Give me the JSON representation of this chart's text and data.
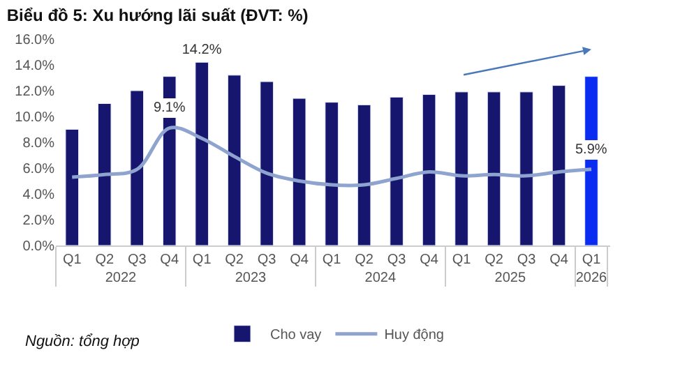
{
  "chart_data": {
    "type": "bar",
    "title": "Biểu đồ 5: Xu hướng lãi suất (ĐVT: %)",
    "categories": [
      "Q1",
      "Q2",
      "Q3",
      "Q4",
      "Q1",
      "Q2",
      "Q3",
      "Q4",
      "Q1",
      "Q2",
      "Q3",
      "Q4",
      "Q1",
      "Q2",
      "Q3",
      "Q4",
      "Q1"
    ],
    "series": [
      {
        "name": "Cho vay",
        "color": "#16166e",
        "colors": [
          "#16166e",
          "#16166e",
          "#16166e",
          "#16166e",
          "#16166e",
          "#16166e",
          "#16166e",
          "#16166e",
          "#16166e",
          "#16166e",
          "#16166e",
          "#16166e",
          "#16166e",
          "#16166e",
          "#16166e",
          "#16166e",
          "#0a2cf0"
        ],
        "values": [
          9.0,
          11.0,
          12.0,
          13.1,
          14.2,
          13.2,
          12.7,
          11.4,
          11.1,
          10.9,
          11.5,
          11.7,
          11.9,
          11.9,
          11.9,
          12.4,
          13.1
        ],
        "value_labels": [
          null,
          null,
          null,
          null,
          "14.2%",
          null,
          null,
          null,
          null,
          null,
          null,
          null,
          null,
          null,
          null,
          null,
          null
        ]
      },
      {
        "name": "Huy động",
        "type": "line",
        "color": "#8fa3cf",
        "values": [
          5.3,
          5.5,
          5.9,
          9.1,
          8.3,
          6.9,
          5.6,
          5.0,
          4.7,
          4.7,
          5.2,
          5.7,
          5.4,
          5.5,
          5.4,
          5.7,
          5.9
        ],
        "value_labels": [
          null,
          null,
          null,
          "9.1%",
          null,
          null,
          null,
          null,
          null,
          null,
          null,
          null,
          null,
          null,
          null,
          null,
          "5.9%"
        ]
      }
    ],
    "ylim": [
      0,
      16
    ],
    "yticks": [
      {
        "value": 0,
        "label": "0.0%"
      },
      {
        "value": 2,
        "label": "2.0%"
      },
      {
        "value": 4,
        "label": "4.0%"
      },
      {
        "value": 6,
        "label": "6.0%"
      },
      {
        "value": 8,
        "label": "8.0%"
      },
      {
        "value": 10,
        "label": "10.0%"
      },
      {
        "value": 12,
        "label": "12.0%"
      },
      {
        "value": 14,
        "label": "14.0%"
      },
      {
        "value": 16,
        "label": "16.0%"
      }
    ],
    "annotations": [
      "2022",
      "2023",
      "2024",
      "2025",
      "2026",
      "Nguồn: tổng hợp"
    ],
    "legend": "bottom",
    "marker": "none",
    "line_style": "solid"
  }
}
